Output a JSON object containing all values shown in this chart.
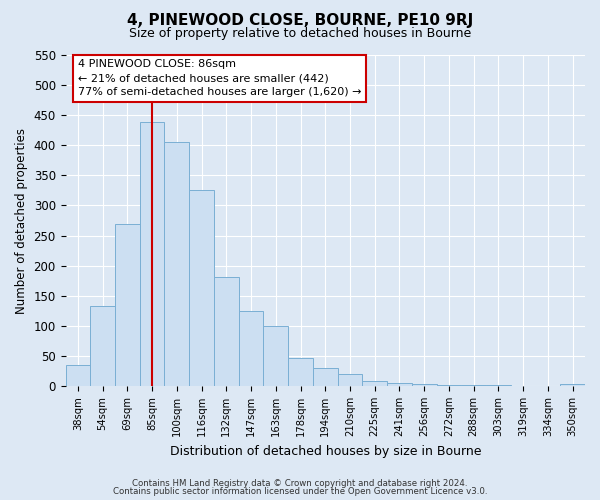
{
  "title": "4, PINEWOOD CLOSE, BOURNE, PE10 9RJ",
  "subtitle": "Size of property relative to detached houses in Bourne",
  "xlabel": "Distribution of detached houses by size in Bourne",
  "ylabel": "Number of detached properties",
  "categories": [
    "38sqm",
    "54sqm",
    "69sqm",
    "85sqm",
    "100sqm",
    "116sqm",
    "132sqm",
    "147sqm",
    "163sqm",
    "178sqm",
    "194sqm",
    "210sqm",
    "225sqm",
    "241sqm",
    "256sqm",
    "272sqm",
    "288sqm",
    "303sqm",
    "319sqm",
    "334sqm",
    "350sqm"
  ],
  "values": [
    35,
    133,
    270,
    438,
    405,
    325,
    182,
    125,
    100,
    46,
    30,
    20,
    8,
    5,
    4,
    2,
    1,
    1,
    0,
    0,
    4
  ],
  "bar_color": "#ccdff2",
  "bar_edge_color": "#7aafd4",
  "vline_x": 3,
  "vline_color": "#cc0000",
  "annotation_title": "4 PINEWOOD CLOSE: 86sqm",
  "annotation_line1": "← 21% of detached houses are smaller (442)",
  "annotation_line2": "77% of semi-detached houses are larger (1,620) →",
  "box_facecolor": "#ffffff",
  "box_edgecolor": "#cc0000",
  "ylim": [
    0,
    550
  ],
  "yticks": [
    0,
    50,
    100,
    150,
    200,
    250,
    300,
    350,
    400,
    450,
    500,
    550
  ],
  "footer1": "Contains HM Land Registry data © Crown copyright and database right 2024.",
  "footer2": "Contains public sector information licensed under the Open Government Licence v3.0.",
  "background_color": "#dde8f4",
  "plot_bg_color": "#dde8f4",
  "grid_color": "#ffffff"
}
